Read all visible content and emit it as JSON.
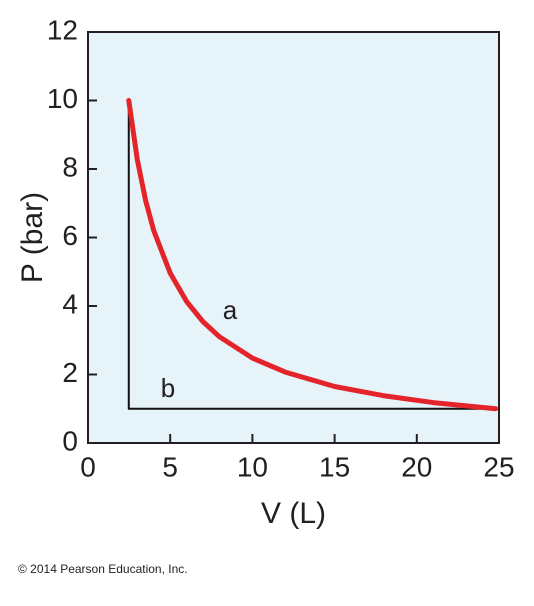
{
  "chart_data": {
    "type": "line",
    "x_label": "V (L)",
    "y_label": "P (bar)",
    "series": [
      {
        "name": "a",
        "color": "#e3242b",
        "x": [
          2.48,
          3,
          3.5,
          4,
          5,
          6,
          7,
          8,
          10,
          12,
          15,
          18,
          21,
          24.8
        ],
        "values": [
          10,
          8.27,
          7.09,
          6.2,
          4.96,
          4.13,
          3.54,
          3.1,
          2.48,
          2.07,
          1.65,
          1.38,
          1.18,
          1
        ]
      },
      {
        "name": "b",
        "color": "#111111",
        "x": [
          2.48,
          2.48,
          24.8
        ],
        "values": [
          10,
          1,
          1
        ]
      }
    ],
    "xlim": [
      0,
      25
    ],
    "xticks": [
      0,
      5,
      10,
      15,
      20,
      25
    ],
    "ylim": [
      0,
      12
    ],
    "yticks": [
      0,
      2,
      4,
      6,
      8,
      10,
      12
    ],
    "background": "#e6f3f9",
    "footnote": "© 2014 Pearson Education, Inc."
  }
}
